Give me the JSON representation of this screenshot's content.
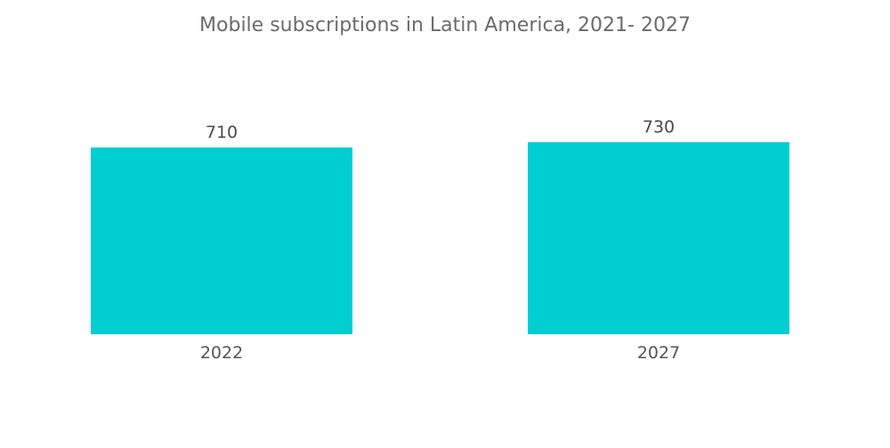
{
  "colors": {
    "bar": "#00CED1",
    "title": "#6b6b6b",
    "text": "#4a4a4a"
  },
  "chart_data": {
    "type": "bar",
    "title": "Mobile subscriptions in Latin America, 2021- 2027",
    "categories": [
      "2022",
      "2027"
    ],
    "values": [
      710,
      730
    ],
    "data_labels": [
      "710",
      "730"
    ],
    "xlabel": "",
    "ylabel": "",
    "ylim": [
      0,
      730
    ],
    "grid": false,
    "legend": "none"
  }
}
